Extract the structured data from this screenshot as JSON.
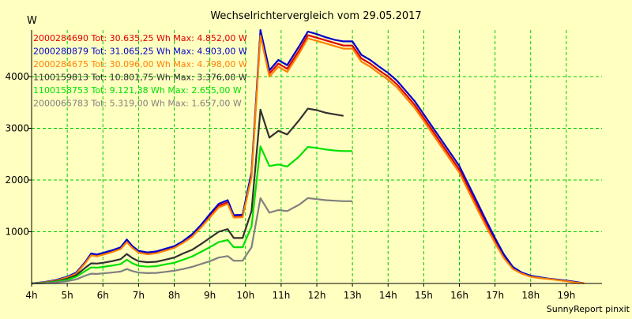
{
  "chart_data": {
    "type": "line",
    "title": "Wechselrichtervergleich vom 29.05.2017",
    "ylabel": "W",
    "xlabel": "",
    "footer": "SunnyReport pinxit",
    "xlim": [
      4,
      20
    ],
    "ylim": [
      0,
      4900
    ],
    "x_ticks": [
      4,
      5,
      6,
      7,
      8,
      9,
      10,
      11,
      12,
      13,
      14,
      15,
      16,
      17,
      18,
      19
    ],
    "x_tick_labels": [
      "4h",
      "5h",
      "6h",
      "7h",
      "8h",
      "9h",
      "10h",
      "11h",
      "12h",
      "13h",
      "14h",
      "15h",
      "16h",
      "17h",
      "18h",
      "19h"
    ],
    "y_ticks": [
      1000,
      2000,
      3000,
      4000
    ],
    "grid": true,
    "legend_position": "top-left",
    "colors": {
      "background": "#ffffc0",
      "grid": "#00cc00",
      "axis": "#000000"
    },
    "series": [
      {
        "name": "2000284690",
        "legend_text": "2000284690 Tot: 30.635,25 Wh Max: 4.852,00 W",
        "color": "#e00000",
        "points": [
          [
            4,
            0
          ],
          [
            4.33,
            20
          ],
          [
            4.67,
            60
          ],
          [
            5,
            120
          ],
          [
            5.25,
            200
          ],
          [
            5.5,
            400
          ],
          [
            5.67,
            560
          ],
          [
            5.83,
            540
          ],
          [
            6,
            570
          ],
          [
            6.25,
            620
          ],
          [
            6.5,
            680
          ],
          [
            6.67,
            820
          ],
          [
            6.83,
            700
          ],
          [
            7,
            610
          ],
          [
            7.25,
            580
          ],
          [
            7.5,
            600
          ],
          [
            7.75,
            650
          ],
          [
            8,
            700
          ],
          [
            8.25,
            800
          ],
          [
            8.5,
            920
          ],
          [
            8.75,
            1100
          ],
          [
            9,
            1300
          ],
          [
            9.25,
            1500
          ],
          [
            9.5,
            1570
          ],
          [
            9.67,
            1300
          ],
          [
            9.92,
            1300
          ],
          [
            10.17,
            2100
          ],
          [
            10.42,
            4850
          ],
          [
            10.67,
            4060
          ],
          [
            10.92,
            4250
          ],
          [
            11.17,
            4150
          ],
          [
            11.5,
            4500
          ],
          [
            11.75,
            4800
          ],
          [
            12,
            4750
          ],
          [
            12.25,
            4700
          ],
          [
            12.5,
            4650
          ],
          [
            12.75,
            4600
          ],
          [
            13,
            4600
          ],
          [
            13.25,
            4350
          ],
          [
            13.5,
            4250
          ],
          [
            13.75,
            4120
          ],
          [
            14,
            4000
          ],
          [
            14.25,
            3850
          ],
          [
            14.5,
            3650
          ],
          [
            14.75,
            3450
          ],
          [
            15,
            3200
          ],
          [
            15.25,
            2950
          ],
          [
            15.5,
            2700
          ],
          [
            15.75,
            2450
          ],
          [
            16,
            2200
          ],
          [
            16.25,
            1850
          ],
          [
            16.5,
            1500
          ],
          [
            16.75,
            1150
          ],
          [
            17,
            820
          ],
          [
            17.25,
            520
          ],
          [
            17.5,
            300
          ],
          [
            17.75,
            200
          ],
          [
            18,
            140
          ],
          [
            18.25,
            110
          ],
          [
            18.5,
            90
          ],
          [
            18.75,
            70
          ],
          [
            19,
            50
          ],
          [
            19.25,
            25
          ],
          [
            19.5,
            5
          ]
        ]
      },
      {
        "name": "2000280879",
        "legend_text": "2000280879 Tot: 31.065,25 Wh Max: 4.903,00 W",
        "color": "#0000cc",
        "points": [
          [
            4,
            0
          ],
          [
            4.33,
            25
          ],
          [
            4.67,
            65
          ],
          [
            5,
            130
          ],
          [
            5.25,
            210
          ],
          [
            5.5,
            410
          ],
          [
            5.67,
            580
          ],
          [
            5.83,
            560
          ],
          [
            6,
            590
          ],
          [
            6.25,
            640
          ],
          [
            6.5,
            700
          ],
          [
            6.67,
            850
          ],
          [
            6.83,
            720
          ],
          [
            7,
            630
          ],
          [
            7.25,
            600
          ],
          [
            7.5,
            620
          ],
          [
            7.75,
            670
          ],
          [
            8,
            720
          ],
          [
            8.25,
            820
          ],
          [
            8.5,
            950
          ],
          [
            8.75,
            1130
          ],
          [
            9,
            1340
          ],
          [
            9.25,
            1540
          ],
          [
            9.5,
            1610
          ],
          [
            9.67,
            1320
          ],
          [
            9.92,
            1330
          ],
          [
            10.17,
            2150
          ],
          [
            10.42,
            4900
          ],
          [
            10.67,
            4120
          ],
          [
            10.92,
            4320
          ],
          [
            11.17,
            4220
          ],
          [
            11.5,
            4580
          ],
          [
            11.75,
            4870
          ],
          [
            12,
            4820
          ],
          [
            12.25,
            4760
          ],
          [
            12.5,
            4710
          ],
          [
            12.75,
            4680
          ],
          [
            13,
            4680
          ],
          [
            13.25,
            4420
          ],
          [
            13.5,
            4320
          ],
          [
            13.75,
            4190
          ],
          [
            14,
            4070
          ],
          [
            14.25,
            3920
          ],
          [
            14.5,
            3720
          ],
          [
            14.75,
            3520
          ],
          [
            15,
            3270
          ],
          [
            15.25,
            3020
          ],
          [
            15.5,
            2770
          ],
          [
            15.75,
            2520
          ],
          [
            16,
            2270
          ],
          [
            16.25,
            1920
          ],
          [
            16.5,
            1570
          ],
          [
            16.75,
            1220
          ],
          [
            17,
            880
          ],
          [
            17.25,
            560
          ],
          [
            17.5,
            320
          ],
          [
            17.75,
            210
          ],
          [
            18,
            150
          ],
          [
            18.25,
            120
          ],
          [
            18.5,
            95
          ],
          [
            18.75,
            75
          ],
          [
            19,
            55
          ],
          [
            19.25,
            30
          ],
          [
            19.5,
            5
          ]
        ]
      },
      {
        "name": "2000284675",
        "legend_text": "2000284675 Tot: 30.096,00 Wh Max: 4.798,00 W",
        "color": "#ff8000",
        "points": [
          [
            4,
            0
          ],
          [
            4.33,
            18
          ],
          [
            4.67,
            55
          ],
          [
            5,
            115
          ],
          [
            5.25,
            190
          ],
          [
            5.5,
            390
          ],
          [
            5.67,
            545
          ],
          [
            5.83,
            525
          ],
          [
            6,
            555
          ],
          [
            6.25,
            605
          ],
          [
            6.5,
            665
          ],
          [
            6.67,
            800
          ],
          [
            6.83,
            685
          ],
          [
            7,
            595
          ],
          [
            7.25,
            565
          ],
          [
            7.5,
            585
          ],
          [
            7.75,
            635
          ],
          [
            8,
            685
          ],
          [
            8.25,
            785
          ],
          [
            8.5,
            900
          ],
          [
            8.75,
            1080
          ],
          [
            9,
            1275
          ],
          [
            9.25,
            1470
          ],
          [
            9.5,
            1540
          ],
          [
            9.67,
            1275
          ],
          [
            9.92,
            1280
          ],
          [
            10.17,
            2060
          ],
          [
            10.42,
            4790
          ],
          [
            10.67,
            4000
          ],
          [
            10.92,
            4190
          ],
          [
            11.17,
            4090
          ],
          [
            11.5,
            4440
          ],
          [
            11.75,
            4740
          ],
          [
            12,
            4690
          ],
          [
            12.25,
            4640
          ],
          [
            12.5,
            4590
          ],
          [
            12.75,
            4540
          ],
          [
            13,
            4540
          ],
          [
            13.25,
            4290
          ],
          [
            13.5,
            4190
          ],
          [
            13.75,
            4060
          ],
          [
            14,
            3940
          ],
          [
            14.25,
            3790
          ],
          [
            14.5,
            3590
          ],
          [
            14.75,
            3390
          ],
          [
            15,
            3140
          ],
          [
            15.25,
            2890
          ],
          [
            15.5,
            2640
          ],
          [
            15.75,
            2390
          ],
          [
            16,
            2140
          ],
          [
            16.25,
            1790
          ],
          [
            16.5,
            1440
          ],
          [
            16.75,
            1100
          ],
          [
            17,
            780
          ],
          [
            17.25,
            490
          ],
          [
            17.5,
            280
          ],
          [
            17.75,
            190
          ],
          [
            18,
            130
          ],
          [
            18.25,
            105
          ],
          [
            18.5,
            85
          ],
          [
            18.75,
            65
          ],
          [
            19,
            45
          ],
          [
            19.25,
            20
          ],
          [
            19.5,
            5
          ]
        ]
      },
      {
        "name": "1100159813",
        "legend_text": "1100159813 Tot: 10.801,75 Wh Max: 3.376,00 W",
        "color": "#303030",
        "points": [
          [
            4,
            0
          ],
          [
            4.33,
            10
          ],
          [
            4.67,
            40
          ],
          [
            5,
            90
          ],
          [
            5.25,
            160
          ],
          [
            5.5,
            300
          ],
          [
            5.67,
            390
          ],
          [
            5.83,
            385
          ],
          [
            6,
            400
          ],
          [
            6.25,
            430
          ],
          [
            6.5,
            470
          ],
          [
            6.67,
            570
          ],
          [
            6.83,
            490
          ],
          [
            7,
            430
          ],
          [
            7.25,
            410
          ],
          [
            7.5,
            420
          ],
          [
            7.75,
            460
          ],
          [
            8,
            500
          ],
          [
            8.25,
            580
          ],
          [
            8.5,
            650
          ],
          [
            8.75,
            760
          ],
          [
            9,
            880
          ],
          [
            9.25,
            1000
          ],
          [
            9.5,
            1050
          ],
          [
            9.67,
            880
          ],
          [
            9.92,
            880
          ],
          [
            10.17,
            1400
          ],
          [
            10.42,
            3360
          ],
          [
            10.67,
            2820
          ],
          [
            10.92,
            2950
          ],
          [
            11.17,
            2880
          ],
          [
            11.5,
            3150
          ],
          [
            11.75,
            3380
          ],
          [
            12,
            3350
          ],
          [
            12.25,
            3300
          ],
          [
            12.5,
            3270
          ],
          [
            12.75,
            3240
          ]
        ]
      },
      {
        "name": "1100158753",
        "legend_text": "1100158753 Tot: 9.121,38 Wh Max: 2.655,00 W",
        "color": "#00e000",
        "points": [
          [
            4,
            0
          ],
          [
            4.33,
            8
          ],
          [
            4.67,
            30
          ],
          [
            5,
            70
          ],
          [
            5.25,
            130
          ],
          [
            5.5,
            240
          ],
          [
            5.67,
            310
          ],
          [
            5.83,
            305
          ],
          [
            6,
            320
          ],
          [
            6.25,
            345
          ],
          [
            6.5,
            375
          ],
          [
            6.67,
            460
          ],
          [
            6.83,
            390
          ],
          [
            7,
            340
          ],
          [
            7.25,
            325
          ],
          [
            7.5,
            335
          ],
          [
            7.75,
            370
          ],
          [
            8,
            400
          ],
          [
            8.25,
            460
          ],
          [
            8.5,
            520
          ],
          [
            8.75,
            610
          ],
          [
            9,
            700
          ],
          [
            9.25,
            800
          ],
          [
            9.5,
            840
          ],
          [
            9.67,
            700
          ],
          [
            9.92,
            700
          ],
          [
            10.17,
            1100
          ],
          [
            10.42,
            2650
          ],
          [
            10.67,
            2270
          ],
          [
            10.92,
            2300
          ],
          [
            11.17,
            2260
          ],
          [
            11.5,
            2450
          ],
          [
            11.75,
            2640
          ],
          [
            12,
            2620
          ],
          [
            12.25,
            2590
          ],
          [
            12.5,
            2570
          ],
          [
            12.75,
            2560
          ],
          [
            13,
            2560
          ]
        ]
      },
      {
        "name": "2000065783",
        "legend_text": "2000065783 Tot: 5.319,00 Wh Max: 1.657,00 W",
        "color": "#808080",
        "points": [
          [
            4,
            0
          ],
          [
            4.33,
            5
          ],
          [
            4.67,
            20
          ],
          [
            5,
            45
          ],
          [
            5.25,
            80
          ],
          [
            5.5,
            150
          ],
          [
            5.67,
            190
          ],
          [
            5.83,
            185
          ],
          [
            6,
            195
          ],
          [
            6.25,
            210
          ],
          [
            6.5,
            230
          ],
          [
            6.67,
            280
          ],
          [
            6.83,
            240
          ],
          [
            7,
            210
          ],
          [
            7.25,
            200
          ],
          [
            7.5,
            205
          ],
          [
            7.75,
            225
          ],
          [
            8,
            245
          ],
          [
            8.25,
            280
          ],
          [
            8.5,
            320
          ],
          [
            8.75,
            375
          ],
          [
            9,
            430
          ],
          [
            9.25,
            500
          ],
          [
            9.5,
            530
          ],
          [
            9.67,
            440
          ],
          [
            9.92,
            440
          ],
          [
            10.17,
            700
          ],
          [
            10.42,
            1650
          ],
          [
            10.67,
            1370
          ],
          [
            10.92,
            1420
          ],
          [
            11.17,
            1400
          ],
          [
            11.5,
            1520
          ],
          [
            11.75,
            1650
          ],
          [
            12,
            1630
          ],
          [
            12.25,
            1610
          ],
          [
            12.5,
            1600
          ],
          [
            12.75,
            1590
          ],
          [
            13,
            1590
          ]
        ]
      }
    ]
  }
}
